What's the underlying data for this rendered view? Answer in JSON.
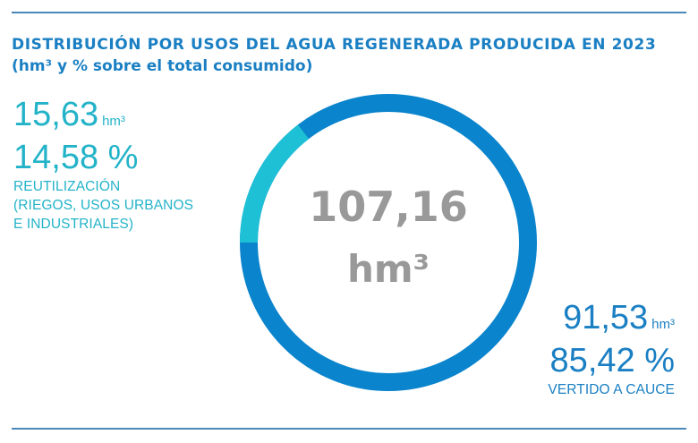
{
  "header": {
    "title": "DISTRIBUCIÓN POR USOS DEL AGUA REGENERADA PRODUCIDA EN 2023",
    "subtitle": "(hm³ y % sobre el total consumido)"
  },
  "total": {
    "value": "107,16",
    "unit": "hm³"
  },
  "segments": [
    {
      "value": "15,63",
      "unit": "hm³",
      "percent": "14,58 %",
      "label_lines": [
        "REUTILIZACIÓN",
        "(RIEGOS, USOS URBANOS",
        "E INDUSTRIALES)"
      ],
      "color": "#1ec0d6"
    },
    {
      "value": "91,53",
      "unit": "hm³",
      "percent": "85,42 %",
      "label_lines": [
        "VERTIDO A CAUCE"
      ],
      "color": "#0a84cc"
    }
  ],
  "colors": {
    "rule": "#4b87b8",
    "title": "#1a7fc3",
    "center_text": "#999999",
    "left_text": "#23b3c8",
    "right_text": "#1a7fc3"
  },
  "chart_data": {
    "type": "pie",
    "variant": "donut",
    "title": "DISTRIBUCIÓN POR USOS DEL AGUA REGENERADA PRODUCIDA EN 2023",
    "subtitle": "(hm³ y % sobre el total consumido)",
    "center_label": "107,16 hm³",
    "categories": [
      "REUTILIZACIÓN (RIEGOS, USOS URBANOS E INDUSTRIALES)",
      "VERTIDO A CAUCE"
    ],
    "values": [
      15.63,
      91.53
    ],
    "percentages": [
      14.58,
      85.42
    ],
    "unit": "hm³",
    "total": 107.16,
    "colors": [
      "#1ec0d6",
      "#0a84cc"
    ]
  }
}
